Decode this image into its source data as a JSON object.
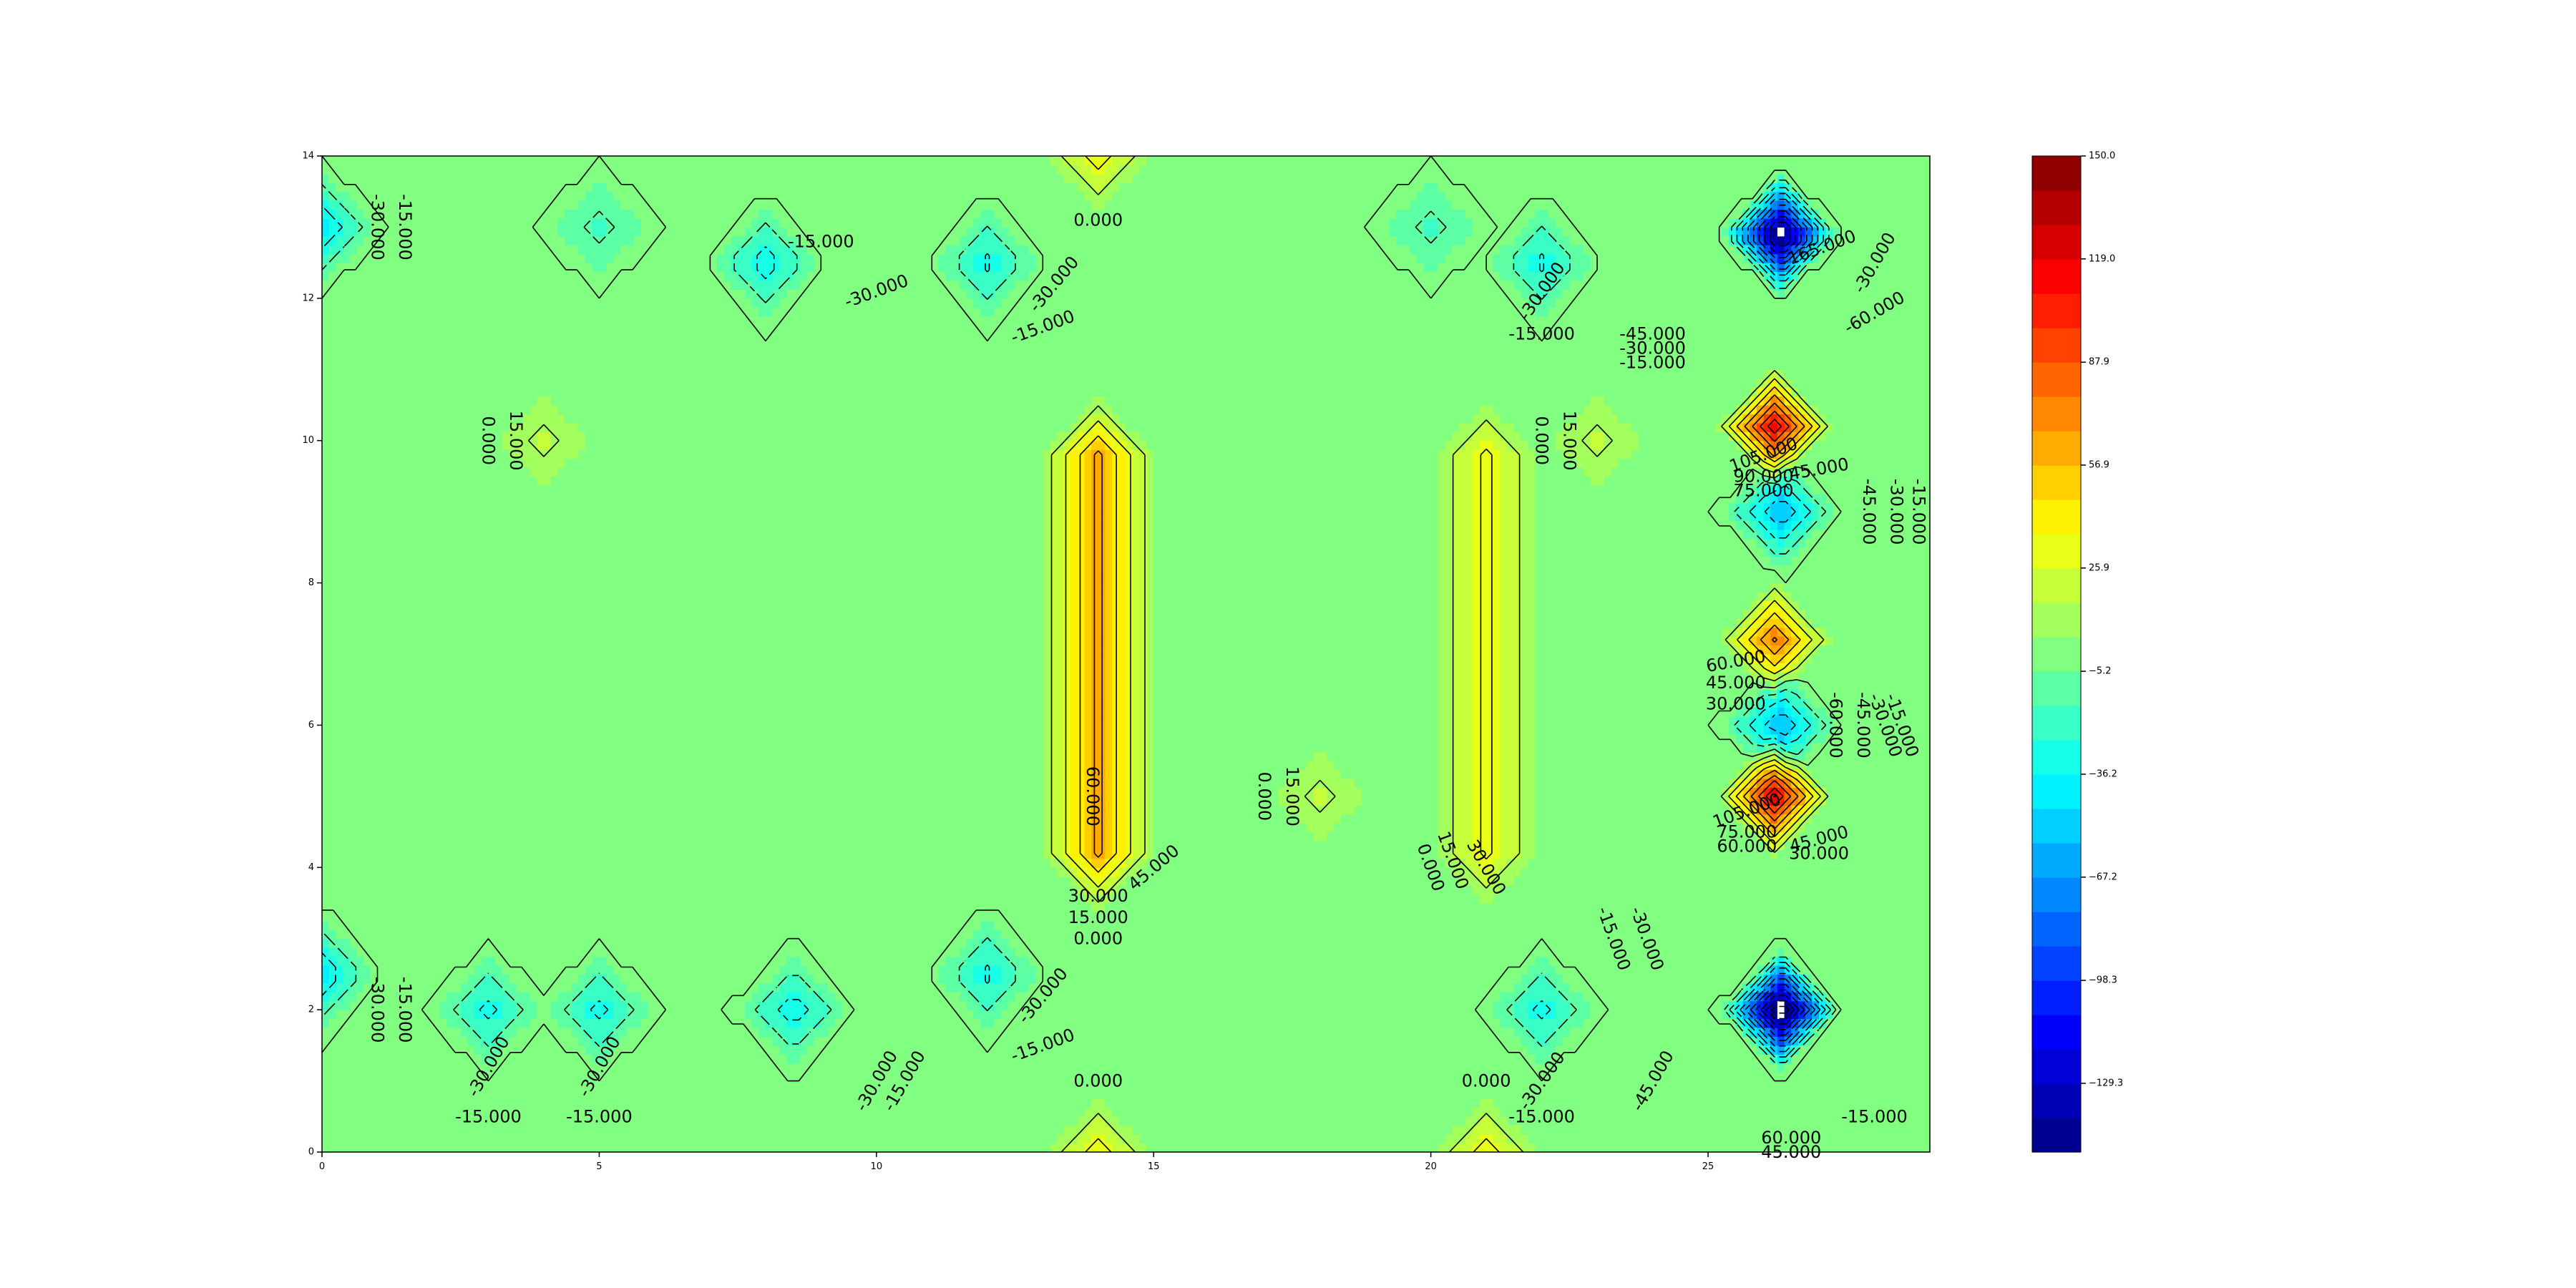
{
  "chart_data": {
    "type": "heatmap",
    "subtype": "filled-contour",
    "title": "",
    "xlabel": "",
    "ylabel": "",
    "xlim": [
      0,
      29
    ],
    "ylim": [
      0,
      14
    ],
    "x_ticks": [
      "0",
      "5",
      "10",
      "15",
      "20",
      "25"
    ],
    "y_ticks": [
      "0",
      "2",
      "4",
      "6",
      "8",
      "10",
      "12",
      "14"
    ],
    "grid": false,
    "colormap": "jet",
    "colorbar": {
      "min": -150.0,
      "max": 150.0,
      "levels": 29,
      "tick_labels": [
        "150.0",
        "119.0",
        "87.9",
        "56.9",
        "25.9",
        "−5.2",
        "−36.2",
        "−67.2",
        "−98.3",
        "−129.3"
      ],
      "tick_values": [
        150.0,
        119.0,
        87.9,
        56.9,
        25.9,
        -5.2,
        -36.2,
        -67.2,
        -98.3,
        -129.3
      ]
    },
    "background_value": 0,
    "features": [
      {
        "x": 14,
        "y": 7.0,
        "peak": 64,
        "kind": "ridge",
        "y_range": [
          3,
          11
        ]
      },
      {
        "x": 21,
        "y": 7.0,
        "peak": 33,
        "kind": "ridge",
        "y_range": [
          3,
          11
        ]
      },
      {
        "x": 4,
        "y": 10,
        "peak": 20
      },
      {
        "x": 23,
        "y": 10,
        "peak": 20
      },
      {
        "x": 18,
        "y": 5,
        "peak": 20
      },
      {
        "x": 14,
        "y": 14,
        "peak": 38
      },
      {
        "x": 14,
        "y": 0,
        "peak": 38
      },
      {
        "x": 21,
        "y": 0,
        "peak": 38
      },
      {
        "x": 26.2,
        "y": 10.2,
        "peak": 118
      },
      {
        "x": 26.2,
        "y": 7.2,
        "peak": 78
      },
      {
        "x": 26.2,
        "y": 5.0,
        "peak": 122
      },
      {
        "x": 26.3,
        "y": 12.9,
        "peak": -165
      },
      {
        "x": 26.3,
        "y": 2.0,
        "peak": -175
      },
      {
        "x": 26.3,
        "y": 9.0,
        "peak": -60
      },
      {
        "x": 26.3,
        "y": 6.0,
        "peak": -60
      },
      {
        "x": 0,
        "y": 13,
        "peak": -45
      },
      {
        "x": 0,
        "y": 2.5,
        "peak": -45
      },
      {
        "x": 8,
        "y": 12.5,
        "peak": -40
      },
      {
        "x": 8.5,
        "y": 2,
        "peak": -40
      },
      {
        "x": 12,
        "y": 12.5,
        "peak": -35
      },
      {
        "x": 12,
        "y": 2.5,
        "peak": -35
      },
      {
        "x": 3,
        "y": 2,
        "peak": -35
      },
      {
        "x": 5,
        "y": 2,
        "peak": -35
      },
      {
        "x": 22,
        "y": 12.5,
        "peak": -35
      },
      {
        "x": 22,
        "y": 2,
        "peak": -35
      },
      {
        "x": 5,
        "y": 13,
        "peak": -20
      },
      {
        "x": 20,
        "y": 13,
        "peak": -20
      }
    ],
    "contour_labels": [
      {
        "text": "-15.000",
        "x": 1.5,
        "y": 13.0,
        "rot": 90
      },
      {
        "text": "-30.000",
        "x": 1.0,
        "y": 13.0,
        "rot": 90
      },
      {
        "text": "0.000",
        "x": 3.0,
        "y": 10.0,
        "rot": 90
      },
      {
        "text": "15.000",
        "x": 3.5,
        "y": 10.0,
        "rot": 90
      },
      {
        "text": "-15.000",
        "x": 9.0,
        "y": 12.8,
        "rot": 0
      },
      {
        "text": "-30.000",
        "x": 10.0,
        "y": 12.1,
        "rot": -20
      },
      {
        "text": "0.000",
        "x": 14.0,
        "y": 13.1,
        "rot": 0
      },
      {
        "text": "-30.000",
        "x": 13.2,
        "y": 12.2,
        "rot": -50
      },
      {
        "text": "-15.000",
        "x": 13.0,
        "y": 11.6,
        "rot": -20
      },
      {
        "text": "60.000",
        "x": 13.9,
        "y": 5.0,
        "rot": 90
      },
      {
        "text": "45.000",
        "x": 15.0,
        "y": 4.0,
        "rot": -40
      },
      {
        "text": "30.000",
        "x": 14.0,
        "y": 3.6,
        "rot": 0
      },
      {
        "text": "15.000",
        "x": 14.0,
        "y": 3.3,
        "rot": 0
      },
      {
        "text": "0.000",
        "x": 14.0,
        "y": 3.0,
        "rot": 0
      },
      {
        "text": "0.000",
        "x": 17.0,
        "y": 5.0,
        "rot": 90
      },
      {
        "text": "15.000",
        "x": 17.5,
        "y": 5.0,
        "rot": 90
      },
      {
        "text": "0.000",
        "x": 20.0,
        "y": 4.0,
        "rot": 70
      },
      {
        "text": "15.000",
        "x": 20.4,
        "y": 4.1,
        "rot": 70
      },
      {
        "text": "30.000",
        "x": 21.0,
        "y": 4.0,
        "rot": 60
      },
      {
        "text": "0.000",
        "x": 22.0,
        "y": 10.0,
        "rot": 90
      },
      {
        "text": "15.000",
        "x": 22.5,
        "y": 10.0,
        "rot": 90
      },
      {
        "text": "-30.000",
        "x": 22.0,
        "y": 12.1,
        "rot": -55
      },
      {
        "text": "-15.000",
        "x": 22.0,
        "y": 11.5,
        "rot": 0
      },
      {
        "text": "-45.000",
        "x": 24.0,
        "y": 11.5,
        "rot": 0
      },
      {
        "text": "-30.000",
        "x": 24.0,
        "y": 11.3,
        "rot": 0
      },
      {
        "text": "-15.000",
        "x": 24.0,
        "y": 11.1,
        "rot": 0
      },
      {
        "text": "-165.000",
        "x": 27.0,
        "y": 12.7,
        "rot": -20
      },
      {
        "text": "-30.000",
        "x": 28.0,
        "y": 12.5,
        "rot": -60
      },
      {
        "text": "-60.000",
        "x": 28.0,
        "y": 11.8,
        "rot": -30
      },
      {
        "text": "105.000",
        "x": 26.0,
        "y": 9.8,
        "rot": -20
      },
      {
        "text": "90.000",
        "x": 26.0,
        "y": 9.5,
        "rot": 0
      },
      {
        "text": "75.000",
        "x": 26.0,
        "y": 9.3,
        "rot": 0
      },
      {
        "text": "45.000",
        "x": 27.0,
        "y": 9.6,
        "rot": -10
      },
      {
        "text": "-15.000",
        "x": 28.8,
        "y": 9.0,
        "rot": 90
      },
      {
        "text": "-30.000",
        "x": 28.4,
        "y": 9.0,
        "rot": 90
      },
      {
        "text": "-45.000",
        "x": 27.9,
        "y": 9.0,
        "rot": 90
      },
      {
        "text": "60.000",
        "x": 25.5,
        "y": 6.9,
        "rot": -10
      },
      {
        "text": "45.000",
        "x": 25.5,
        "y": 6.6,
        "rot": 0
      },
      {
        "text": "30.000",
        "x": 25.5,
        "y": 6.3,
        "rot": 0
      },
      {
        "text": "-60.000",
        "x": 27.3,
        "y": 6.0,
        "rot": 90
      },
      {
        "text": "-45.000",
        "x": 27.8,
        "y": 6.0,
        "rot": 90
      },
      {
        "text": "-30.000",
        "x": 28.2,
        "y": 6.0,
        "rot": 70
      },
      {
        "text": "-15.000",
        "x": 28.5,
        "y": 6.0,
        "rot": 70
      },
      {
        "text": "105.000",
        "x": 25.7,
        "y": 4.8,
        "rot": -20
      },
      {
        "text": "75.000",
        "x": 25.7,
        "y": 4.5,
        "rot": 0
      },
      {
        "text": "60.000",
        "x": 25.7,
        "y": 4.3,
        "rot": 0
      },
      {
        "text": "45.000",
        "x": 27.0,
        "y": 4.4,
        "rot": -15
      },
      {
        "text": "30.000",
        "x": 27.0,
        "y": 4.2,
        "rot": 0
      },
      {
        "text": "-15.000",
        "x": 23.3,
        "y": 3.0,
        "rot": 70
      },
      {
        "text": "-30.000",
        "x": 23.9,
        "y": 3.0,
        "rot": 70
      },
      {
        "text": "-45.000",
        "x": 24.0,
        "y": 1.0,
        "rot": -60
      },
      {
        "text": "-30.000",
        "x": 1.0,
        "y": 2.0,
        "rot": 90
      },
      {
        "text": "-15.000",
        "x": 1.5,
        "y": 2.0,
        "rot": 90
      },
      {
        "text": "-30.000",
        "x": 3.0,
        "y": 1.2,
        "rot": -60
      },
      {
        "text": "-15.000",
        "x": 3.0,
        "y": 0.5,
        "rot": 0
      },
      {
        "text": "-30.000",
        "x": 5.0,
        "y": 1.2,
        "rot": -60
      },
      {
        "text": "-15.000",
        "x": 5.0,
        "y": 0.5,
        "rot": 0
      },
      {
        "text": "-30.000",
        "x": 10.0,
        "y": 1.0,
        "rot": -60
      },
      {
        "text": "-15.000",
        "x": 10.5,
        "y": 1.0,
        "rot": -60
      },
      {
        "text": "-30.000",
        "x": 13.0,
        "y": 2.2,
        "rot": -50
      },
      {
        "text": "-15.000",
        "x": 13.0,
        "y": 1.5,
        "rot": -20
      },
      {
        "text": "0.000",
        "x": 14.0,
        "y": 1.0,
        "rot": 0
      },
      {
        "text": "0.000",
        "x": 21.0,
        "y": 1.0,
        "rot": 0
      },
      {
        "text": "-30.000",
        "x": 22.0,
        "y": 1.0,
        "rot": -55
      },
      {
        "text": "-15.000",
        "x": 22.0,
        "y": 0.5,
        "rot": 0
      },
      {
        "text": "-15.000",
        "x": 28.0,
        "y": 0.5,
        "rot": 0
      },
      {
        "text": "45.000",
        "x": 26.5,
        "y": 0.0,
        "rot": 0
      },
      {
        "text": "60.000",
        "x": 26.5,
        "y": 0.2,
        "rot": 0
      }
    ]
  }
}
